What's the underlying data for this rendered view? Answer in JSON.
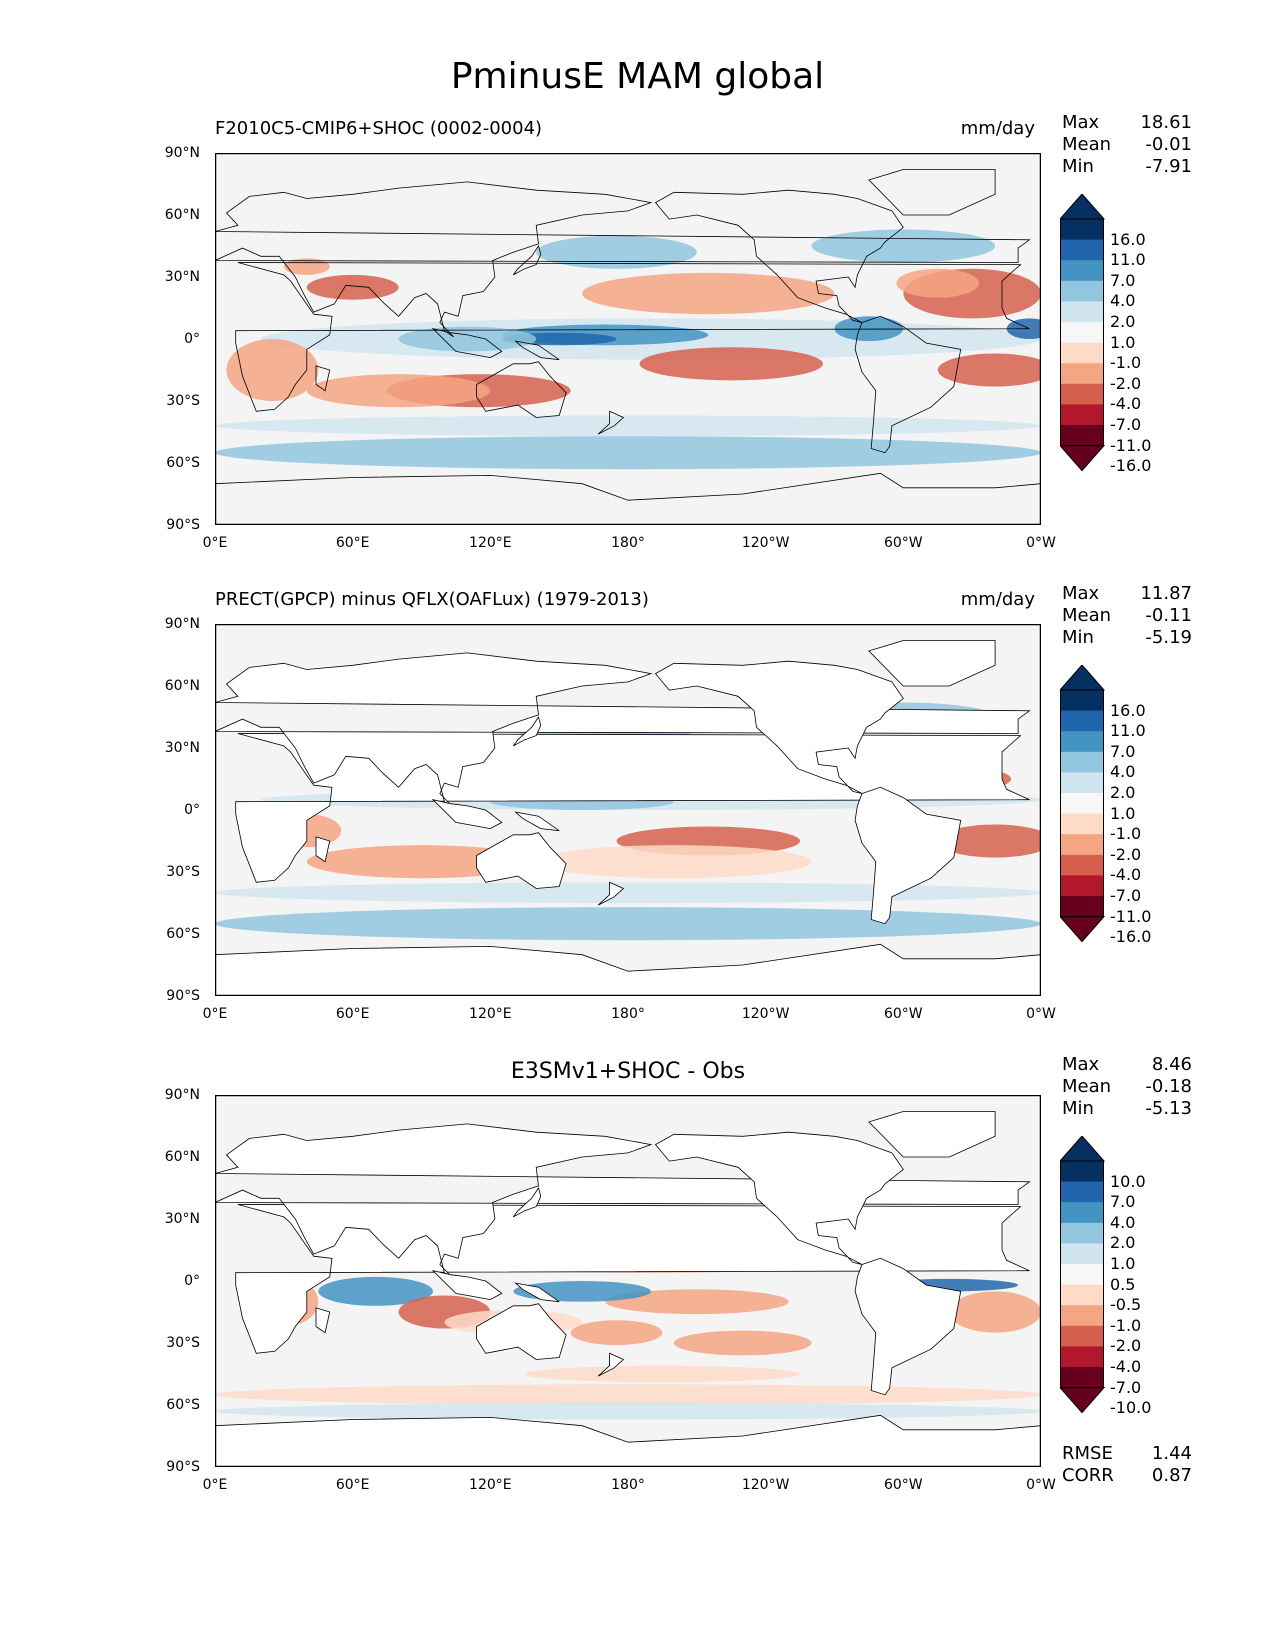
{
  "figure": {
    "title": "PminusE MAM global"
  },
  "axes": {
    "yticks": [
      "90°N",
      "60°N",
      "30°N",
      "0°",
      "30°S",
      "60°S",
      "90°S"
    ],
    "xticks": [
      "0°E",
      "60°E",
      "120°E",
      "180°",
      "120°W",
      "60°W",
      "0°W"
    ]
  },
  "panels": [
    {
      "title": "F2010C5-CMIP6+SHOC (0002-0004)",
      "units": "mm/day",
      "stats": {
        "max_label": "Max",
        "max": "18.61",
        "mean_label": "Mean",
        "mean": "-0.01",
        "min_label": "Min",
        "min": "-7.91"
      },
      "levels": [
        "16.0",
        "11.0",
        "7.0",
        "4.0",
        "2.0",
        "1.0",
        "-1.0",
        "-2.0",
        "-4.0",
        "-7.0",
        "-11.0",
        "-16.0"
      ]
    },
    {
      "title": "PRECT(GPCP) minus QFLX(OAFLux) (1979-2013)",
      "units": "mm/day",
      "stats": {
        "max_label": "Max",
        "max": "11.87",
        "mean_label": "Mean",
        "mean": "-0.11",
        "min_label": "Min",
        "min": "-5.19"
      },
      "levels": [
        "16.0",
        "11.0",
        "7.0",
        "4.0",
        "2.0",
        "1.0",
        "-1.0",
        "-2.0",
        "-4.0",
        "-7.0",
        "-11.0",
        "-16.0"
      ]
    },
    {
      "title": "E3SMv1+SHOC - Obs",
      "stats": {
        "max_label": "Max",
        "max": "8.46",
        "mean_label": "Mean",
        "mean": "-0.18",
        "min_label": "Min",
        "min": "-5.13"
      },
      "levels": [
        "10.0",
        "7.0",
        "4.0",
        "2.0",
        "1.0",
        "0.5",
        "-0.5",
        "-1.0",
        "-2.0",
        "-4.0",
        "-7.0",
        "-10.0"
      ],
      "rmse_label": "RMSE",
      "rmse": "1.44",
      "corr_label": "CORR",
      "corr": "0.87"
    }
  ],
  "colors": {
    "cbar": [
      "#053061",
      "#2166ac",
      "#4393c3",
      "#92c5de",
      "#d1e5f0",
      "#f7f7f7",
      "#fddbc7",
      "#f4a582",
      "#d6604d",
      "#b2182b",
      "#67001f"
    ],
    "cbar_top": "#053061",
    "cbar_bottom": "#67001f",
    "ocean_neutral": "#f4f4f4",
    "land": "#ffffff"
  }
}
